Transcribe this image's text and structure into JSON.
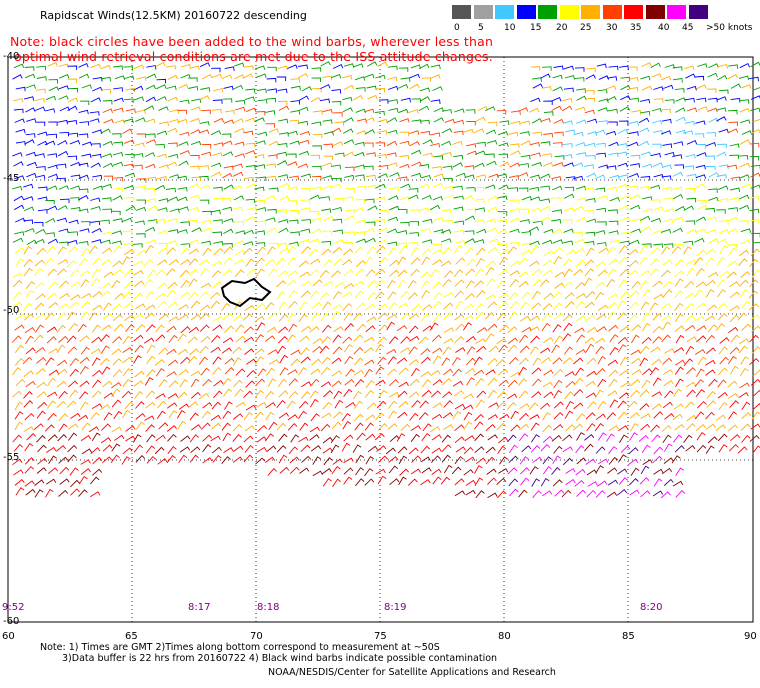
{
  "title": "Rapidscat Winds(12.5KM) 20160722 descending",
  "note_line1": "Note: black circles have been added to the wind barbs, wherever less than",
  "note_line2": "optimal wind retrieval conditions are met due to the ISS attitude changes.",
  "legend": {
    "labels": [
      "0",
      "5",
      "10",
      "15",
      "20",
      "25",
      "30",
      "35",
      "40",
      "45",
      ">50 knots"
    ],
    "colors": [
      "#555555",
      "#a0a0a0",
      "#40c8ff",
      "#0000ff",
      "#00a000",
      "#ffff00",
      "#ffb000",
      "#ff4000",
      "#ff0000",
      "#800000",
      "#ff00ff",
      "#400080"
    ]
  },
  "axes": {
    "x_ticks": [
      "60",
      "65",
      "70",
      "75",
      "80",
      "85",
      "90"
    ],
    "y_ticks": [
      "-40",
      "-45",
      "-50",
      "-55",
      "-60"
    ]
  },
  "times": [
    "9:52",
    "8:17",
    "8:18",
    "8:19",
    "8:20"
  ],
  "footer_line1": "Note: 1) Times are GMT 2)Times along bottom correspond to measurement at ~50S",
  "footer_line2": "3)Data buffer is 22 hrs from 20160722 4) Black wind barbs indicate possible contamination",
  "footer_line3": "NOAA/NESDIS/Center for Satellite Applications and Research"
}
